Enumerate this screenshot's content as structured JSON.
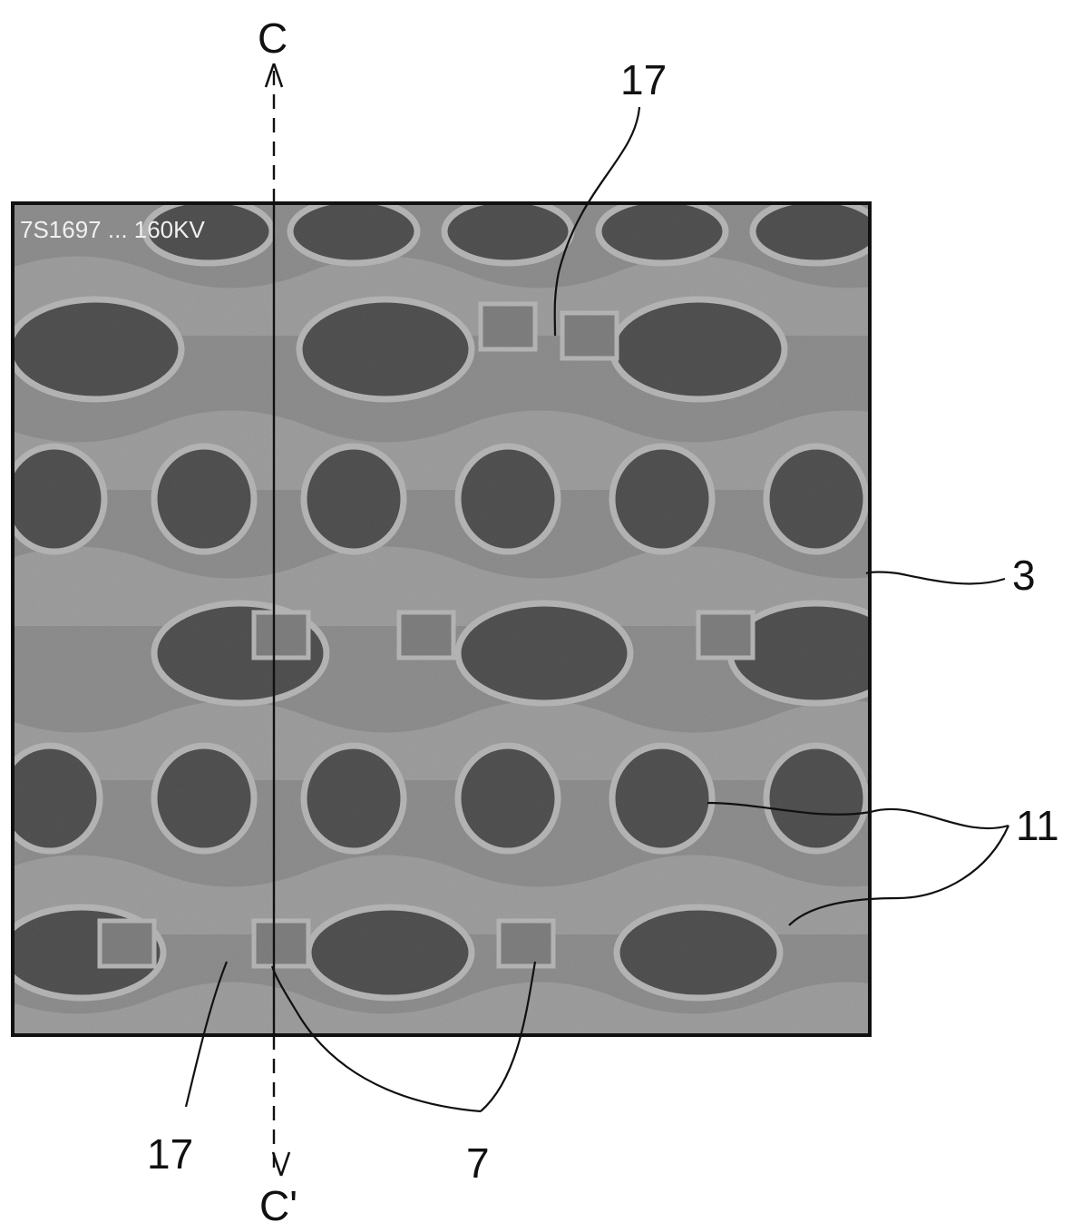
{
  "figure": {
    "micrograph_corner_text": "7S1697 ... 160KV",
    "labels": {
      "section_top": "C",
      "section_bottom": "C'",
      "ref_17_top": "17",
      "ref_17_bottom": "17",
      "ref_3": "3",
      "ref_11": "11",
      "ref_7": "7"
    }
  },
  "colors": {
    "background": "#ffffff",
    "ink": "#111111",
    "dark_region": "#161616",
    "mid_region": "#7a7a7a",
    "light_region": "#c8c8c8",
    "edge_highlight": "#f2f2f2"
  }
}
